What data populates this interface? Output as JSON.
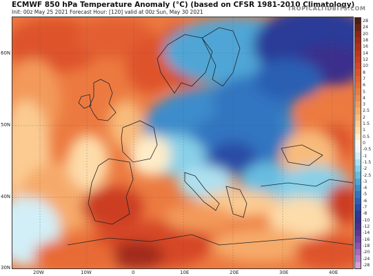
{
  "header": {
    "title": "ECMWF 850 hPa Temperature Anomaly (°C) (based on CFSR 1981-2010 Climatology)",
    "subtitle": "Init: 00z May 25 2021   Forecast Hour: [120]   valid at 00z Sun, May 30 2021",
    "brand": "TROPICALTIDBITS.COM"
  },
  "map": {
    "lat_labels": [
      "60N",
      "50N",
      "40N",
      "30N"
    ],
    "lon_labels": [
      "20W",
      "10W",
      "0",
      "10E",
      "20E",
      "30E",
      "40E"
    ]
  },
  "colorbar": {
    "levels": [
      {
        "label": "28",
        "color": "#4a1e14"
      },
      {
        "label": "24",
        "color": "#6b2216"
      },
      {
        "label": "20",
        "color": "#8c2618"
      },
      {
        "label": "18",
        "color": "#a12a1a"
      },
      {
        "label": "16",
        "color": "#b0301c"
      },
      {
        "label": "14",
        "color": "#bf361e"
      },
      {
        "label": "12",
        "color": "#cc3c22"
      },
      {
        "label": "10",
        "color": "#d64626"
      },
      {
        "label": "8",
        "color": "#de522a"
      },
      {
        "label": "7",
        "color": "#e35e30"
      },
      {
        "label": "6",
        "color": "#e86b36"
      },
      {
        "label": "5",
        "color": "#ec7a40"
      },
      {
        "label": "4",
        "color": "#f0894c"
      },
      {
        "label": "3",
        "color": "#f39a5a"
      },
      {
        "label": "2.5",
        "color": "#f6aa6a"
      },
      {
        "label": "2",
        "color": "#f8bb7c"
      },
      {
        "label": "1.5",
        "color": "#fbcb92"
      },
      {
        "label": "1",
        "color": "#fddcaa"
      },
      {
        "label": "0.5",
        "color": "#feecc8"
      },
      {
        "label": "0",
        "color": "#fdf8ec"
      },
      {
        "label": "-0.5",
        "color": "#eef8fa"
      },
      {
        "label": "-1",
        "color": "#d2eef6"
      },
      {
        "label": "-1.5",
        "color": "#aee0ef"
      },
      {
        "label": "-2",
        "color": "#88d0e8"
      },
      {
        "label": "-2.5",
        "color": "#68bde0"
      },
      {
        "label": "-3",
        "color": "#4fa6d6"
      },
      {
        "label": "-4",
        "color": "#3d8ccb"
      },
      {
        "label": "-5",
        "color": "#3274c0"
      },
      {
        "label": "-6",
        "color": "#2b5fb4"
      },
      {
        "label": "-7",
        "color": "#2a4ba6"
      },
      {
        "label": "-8",
        "color": "#2c3a98"
      },
      {
        "label": "-10",
        "color": "#3a2f8c"
      },
      {
        "label": "-12",
        "color": "#4a3290"
      },
      {
        "label": "-14",
        "color": "#5c3896"
      },
      {
        "label": "-16",
        "color": "#7444a0"
      },
      {
        "label": "-18",
        "color": "#8c56ac"
      },
      {
        "label": "-20",
        "color": "#a66ab8"
      },
      {
        "label": "-24",
        "color": "#bd82c6"
      },
      {
        "label": "-28",
        "color": "#d4a2d6"
      }
    ]
  }
}
